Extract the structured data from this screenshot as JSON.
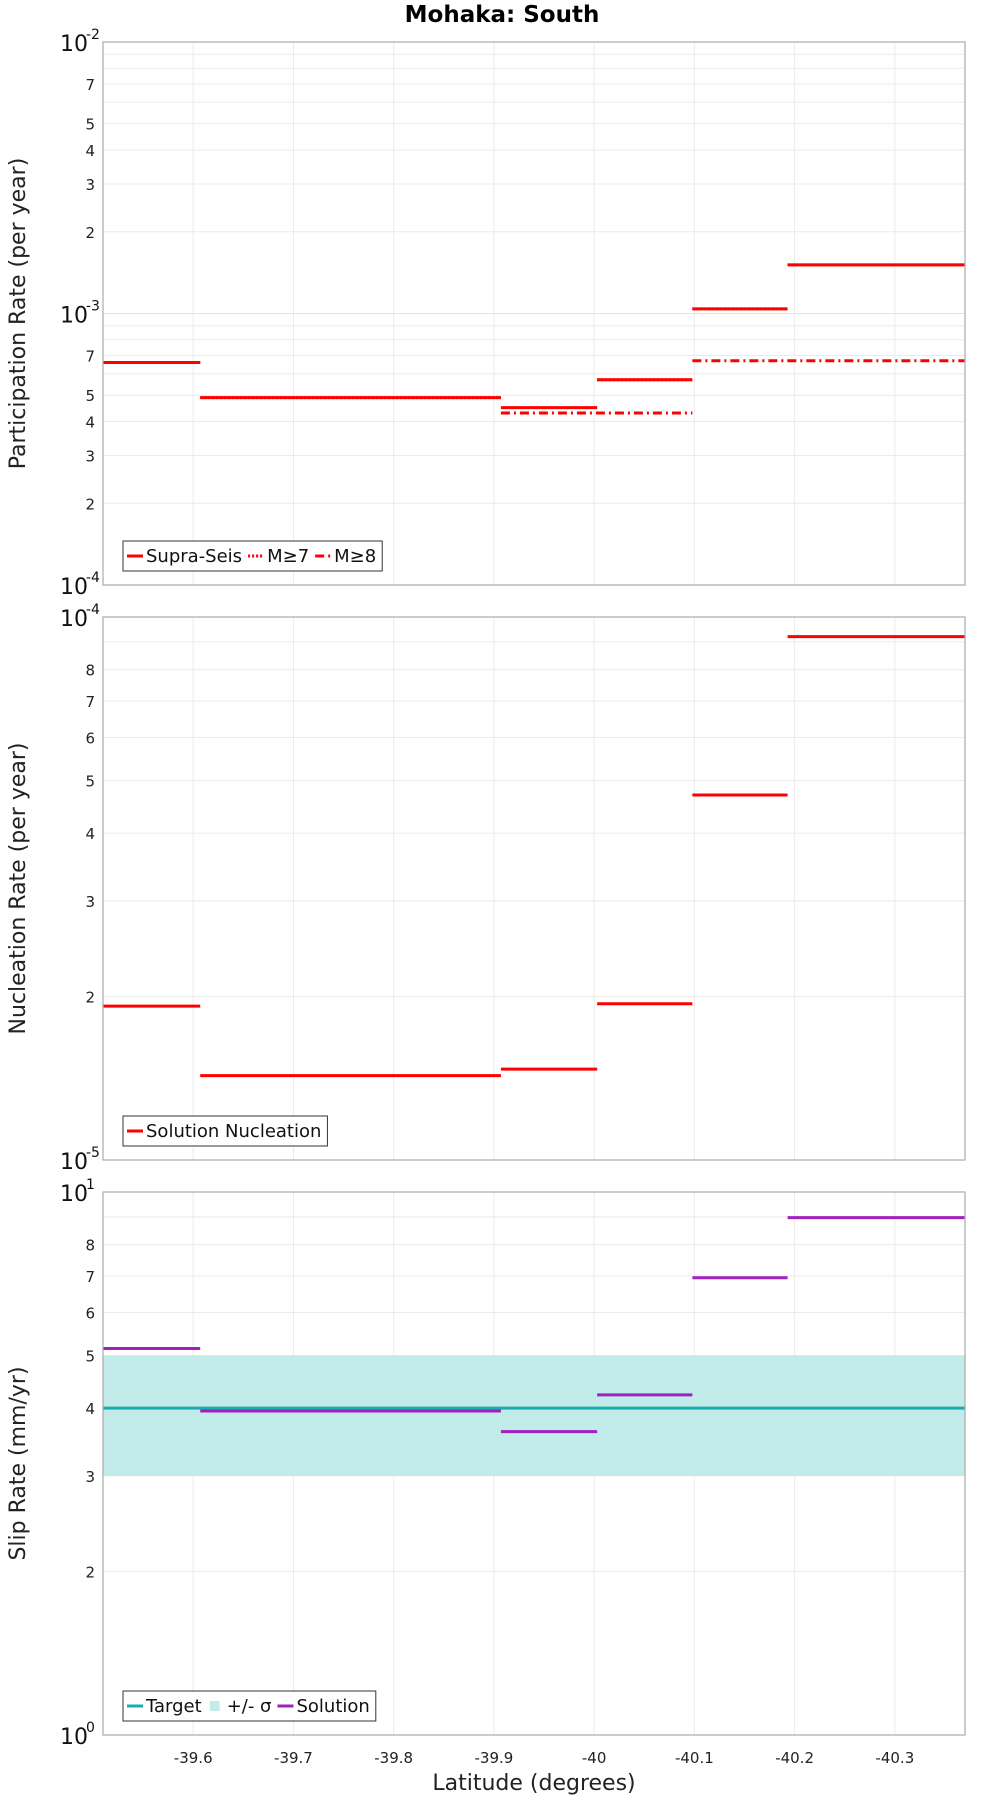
{
  "title": "Mohaka: South",
  "xlabel": "Latitude (degrees)",
  "x_ticks": [
    -39.6,
    -39.7,
    -39.8,
    -39.9,
    -40,
    -40.1,
    -40.2,
    -40.3
  ],
  "x_tick_labels": [
    "-39.6",
    "-39.7",
    "-39.8",
    "-39.9",
    "-40",
    "-40.1",
    "-40.2",
    "-40.3"
  ],
  "x_range": [
    -39.51,
    -40.37
  ],
  "chart_data": [
    {
      "type": "line",
      "id": "participation",
      "ylabel": "Participation Rate (per year)",
      "yscale": "log",
      "ylim": [
        0.0001,
        0.01
      ],
      "decade_labels": [
        {
          "value": 0.01,
          "base": "10",
          "exp": "-2"
        },
        {
          "value": 0.001,
          "base": "10",
          "exp": "-3"
        },
        {
          "value": 0.0001,
          "base": "10",
          "exp": "-4"
        }
      ],
      "minor_labels": [
        {
          "value": 0.007,
          "label": "7"
        },
        {
          "value": 0.005,
          "label": "5"
        },
        {
          "value": 0.004,
          "label": "4"
        },
        {
          "value": 0.003,
          "label": "3"
        },
        {
          "value": 0.002,
          "label": "2"
        },
        {
          "value": 0.0007,
          "label": "7"
        },
        {
          "value": 0.0005,
          "label": "5"
        },
        {
          "value": 0.0004,
          "label": "4"
        },
        {
          "value": 0.0003,
          "label": "3"
        },
        {
          "value": 0.0002,
          "label": "2"
        }
      ],
      "series": [
        {
          "name": "Supra-Seis",
          "style": "solid",
          "color": "#ff0000",
          "segments": [
            {
              "x0": -39.51,
              "x1": -39.607,
              "y": 0.00066
            },
            {
              "x0": -39.607,
              "x1": -39.907,
              "y": 0.00049
            },
            {
              "x0": -39.907,
              "x1": -40.003,
              "y": 0.00045
            },
            {
              "x0": -40.003,
              "x1": -40.098,
              "y": 0.00057
            },
            {
              "x0": -40.098,
              "x1": -40.193,
              "y": 0.00104
            },
            {
              "x0": -40.193,
              "x1": -40.37,
              "y": 0.00151
            }
          ]
        },
        {
          "name": "M≥7",
          "style": "dotted",
          "color": "#ff0000",
          "segments": [
            {
              "x0": -39.51,
              "x1": -39.607,
              "y": 0.00066
            },
            {
              "x0": -39.607,
              "x1": -39.907,
              "y": 0.00049
            },
            {
              "x0": -40.003,
              "x1": -40.098,
              "y": 0.00057
            },
            {
              "x0": -40.098,
              "x1": -40.193,
              "y": 0.00104
            },
            {
              "x0": -40.193,
              "x1": -40.37,
              "y": 0.00151
            }
          ]
        },
        {
          "name": "M≥8",
          "style": "dashdot",
          "color": "#ff0000",
          "segments": [
            {
              "x0": -39.907,
              "x1": -40.098,
              "y": 0.00043
            },
            {
              "x0": -40.098,
              "x1": -40.37,
              "y": 0.00067
            }
          ]
        }
      ],
      "legend": {
        "position": "bottom-left",
        "entries": [
          "Supra-Seis",
          "M≥7",
          "M≥8"
        ]
      }
    },
    {
      "type": "line",
      "id": "nucleation",
      "ylabel": "Nucleation Rate (per year)",
      "yscale": "log",
      "ylim": [
        1e-05,
        0.0001
      ],
      "decade_labels": [
        {
          "value": 0.0001,
          "base": "10",
          "exp": "-4"
        },
        {
          "value": 1e-05,
          "base": "10",
          "exp": "-5"
        }
      ],
      "minor_labels": [
        {
          "value": 8e-05,
          "label": "8"
        },
        {
          "value": 7e-05,
          "label": "7"
        },
        {
          "value": 6e-05,
          "label": "6"
        },
        {
          "value": 5e-05,
          "label": "5"
        },
        {
          "value": 4e-05,
          "label": "4"
        },
        {
          "value": 3e-05,
          "label": "3"
        },
        {
          "value": 2e-05,
          "label": "2"
        }
      ],
      "series": [
        {
          "name": "Solution Nucleation",
          "style": "solid",
          "color": "#ff0000",
          "segments": [
            {
              "x0": -39.51,
              "x1": -39.607,
              "y": 1.92e-05
            },
            {
              "x0": -39.607,
              "x1": -39.907,
              "y": 1.43e-05
            },
            {
              "x0": -39.907,
              "x1": -40.003,
              "y": 1.47e-05
            },
            {
              "x0": -40.003,
              "x1": -40.098,
              "y": 1.94e-05
            },
            {
              "x0": -40.098,
              "x1": -40.193,
              "y": 4.7e-05
            },
            {
              "x0": -40.193,
              "x1": -40.37,
              "y": 9.2e-05
            }
          ]
        }
      ],
      "legend": {
        "position": "bottom-left",
        "entries": [
          "Solution Nucleation"
        ]
      }
    },
    {
      "type": "line",
      "id": "slip",
      "ylabel": "Slip Rate (mm/yr)",
      "yscale": "log",
      "ylim": [
        1,
        10
      ],
      "decade_labels": [
        {
          "value": 10,
          "base": "10",
          "exp": "1"
        },
        {
          "value": 1,
          "base": "10",
          "exp": "0"
        }
      ],
      "minor_labels": [
        {
          "value": 8,
          "label": "8"
        },
        {
          "value": 7,
          "label": "7"
        },
        {
          "value": 6,
          "label": "6"
        },
        {
          "value": 5,
          "label": "5"
        },
        {
          "value": 4,
          "label": "4"
        },
        {
          "value": 3,
          "label": "3"
        },
        {
          "value": 2,
          "label": "2"
        }
      ],
      "band": {
        "name": "+/- σ",
        "y0": 3.0,
        "y1": 5.0,
        "color": "#c2ecea"
      },
      "series": [
        {
          "name": "Target",
          "style": "solid",
          "color": "#1aacac",
          "segments": [
            {
              "x0": -39.51,
              "x1": -40.37,
              "y": 4.0
            }
          ]
        },
        {
          "name": "Solution",
          "style": "solid",
          "color": "#a020c0",
          "segments": [
            {
              "x0": -39.51,
              "x1": -39.607,
              "y": 5.15
            },
            {
              "x0": -39.607,
              "x1": -39.907,
              "y": 3.95
            },
            {
              "x0": -39.907,
              "x1": -40.003,
              "y": 3.62
            },
            {
              "x0": -40.003,
              "x1": -40.098,
              "y": 4.23
            },
            {
              "x0": -40.098,
              "x1": -40.193,
              "y": 6.95
            },
            {
              "x0": -40.193,
              "x1": -40.37,
              "y": 8.97
            }
          ]
        }
      ],
      "legend": {
        "position": "bottom-left",
        "entries": [
          "Target",
          "+/- σ",
          "Solution"
        ]
      }
    }
  ]
}
